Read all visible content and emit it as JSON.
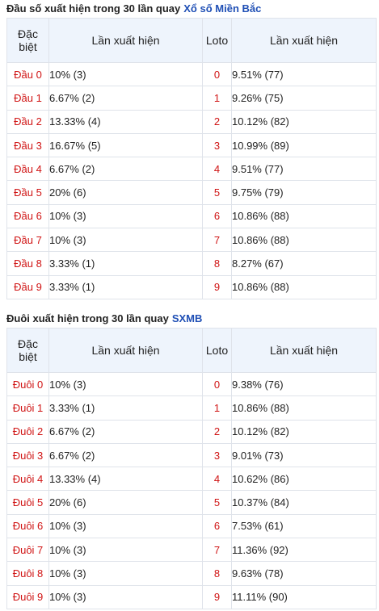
{
  "sections": [
    {
      "title": "Đầu số xuất hiện trong 30 lần quay",
      "title_link": "Xổ số Miền Bắc",
      "headers": [
        "Đặc biệt",
        "Lần xuất hiện",
        "Loto",
        "Lần xuất hiện"
      ],
      "rows": [
        {
          "label": "Đầu 0",
          "freq": {
            "value": 10,
            "label": "10% (3)"
          },
          "loto": 0,
          "loto_freq": {
            "value": 9.51,
            "label": "9.51% (77)"
          }
        },
        {
          "label": "Đầu 1",
          "freq": {
            "value": 6.67,
            "label": "6.67% (2)"
          },
          "loto": 1,
          "loto_freq": {
            "value": 9.26,
            "label": "9.26% (75)"
          }
        },
        {
          "label": "Đầu 2",
          "freq": {
            "value": 13.33,
            "label": "13.33% (4)"
          },
          "loto": 2,
          "loto_freq": {
            "value": 10.12,
            "label": "10.12% (82)"
          }
        },
        {
          "label": "Đầu 3",
          "freq": {
            "value": 16.67,
            "label": "16.67% (5)"
          },
          "loto": 3,
          "loto_freq": {
            "value": 10.99,
            "label": "10.99% (89)"
          }
        },
        {
          "label": "Đầu 4",
          "freq": {
            "value": 6.67,
            "label": "6.67% (2)"
          },
          "loto": 4,
          "loto_freq": {
            "value": 9.51,
            "label": "9.51% (77)"
          }
        },
        {
          "label": "Đầu 5",
          "freq": {
            "value": 20,
            "label": "20% (6)"
          },
          "loto": 5,
          "loto_freq": {
            "value": 9.75,
            "label": "9.75% (79)"
          }
        },
        {
          "label": "Đầu 6",
          "freq": {
            "value": 10,
            "label": "10% (3)"
          },
          "loto": 6,
          "loto_freq": {
            "value": 10.86,
            "label": "10.86% (88)"
          }
        },
        {
          "label": "Đầu 7",
          "freq": {
            "value": 10,
            "label": "10% (3)"
          },
          "loto": 7,
          "loto_freq": {
            "value": 10.86,
            "label": "10.86% (88)"
          }
        },
        {
          "label": "Đầu 8",
          "freq": {
            "value": 3.33,
            "label": "3.33% (1)"
          },
          "loto": 8,
          "loto_freq": {
            "value": 8.27,
            "label": "8.27% (67)"
          }
        },
        {
          "label": "Đầu 9",
          "freq": {
            "value": 3.33,
            "label": "3.33% (1)"
          },
          "loto": 9,
          "loto_freq": {
            "value": 10.86,
            "label": "10.86% (88)"
          }
        }
      ]
    },
    {
      "title": "Đuôi xuất hiện trong 30 lần quay",
      "title_link": "SXMB",
      "headers": [
        "Đặc biệt",
        "Lần xuất hiện",
        "Loto",
        "Lần xuất hiện"
      ],
      "rows": [
        {
          "label": "Đuôi 0",
          "freq": {
            "value": 10,
            "label": "10% (3)"
          },
          "loto": 0,
          "loto_freq": {
            "value": 9.38,
            "label": "9.38% (76)"
          }
        },
        {
          "label": "Đuôi 1",
          "freq": {
            "value": 3.33,
            "label": "3.33% (1)"
          },
          "loto": 1,
          "loto_freq": {
            "value": 10.86,
            "label": "10.86% (88)"
          }
        },
        {
          "label": "Đuôi 2",
          "freq": {
            "value": 6.67,
            "label": "6.67% (2)"
          },
          "loto": 2,
          "loto_freq": {
            "value": 10.12,
            "label": "10.12% (82)"
          }
        },
        {
          "label": "Đuôi 3",
          "freq": {
            "value": 6.67,
            "label": "6.67% (2)"
          },
          "loto": 3,
          "loto_freq": {
            "value": 9.01,
            "label": "9.01% (73)"
          }
        },
        {
          "label": "Đuôi 4",
          "freq": {
            "value": 13.33,
            "label": "13.33% (4)"
          },
          "loto": 4,
          "loto_freq": {
            "value": 10.62,
            "label": "10.62% (86)"
          }
        },
        {
          "label": "Đuôi 5",
          "freq": {
            "value": 20,
            "label": "20% (6)"
          },
          "loto": 5,
          "loto_freq": {
            "value": 10.37,
            "label": "10.37% (84)"
          }
        },
        {
          "label": "Đuôi 6",
          "freq": {
            "value": 10,
            "label": "10% (3)"
          },
          "loto": 6,
          "loto_freq": {
            "value": 7.53,
            "label": "7.53% (61)"
          }
        },
        {
          "label": "Đuôi 7",
          "freq": {
            "value": 10,
            "label": "10% (3)"
          },
          "loto": 7,
          "loto_freq": {
            "value": 11.36,
            "label": "11.36% (92)"
          }
        },
        {
          "label": "Đuôi 8",
          "freq": {
            "value": 10,
            "label": "10% (3)"
          },
          "loto": 8,
          "loto_freq": {
            "value": 9.63,
            "label": "9.63% (78)"
          }
        },
        {
          "label": "Đuôi 9",
          "freq": {
            "value": 10,
            "label": "10% (3)"
          },
          "loto": 9,
          "loto_freq": {
            "value": 11.11,
            "label": "11.11% (90)"
          }
        }
      ]
    }
  ]
}
